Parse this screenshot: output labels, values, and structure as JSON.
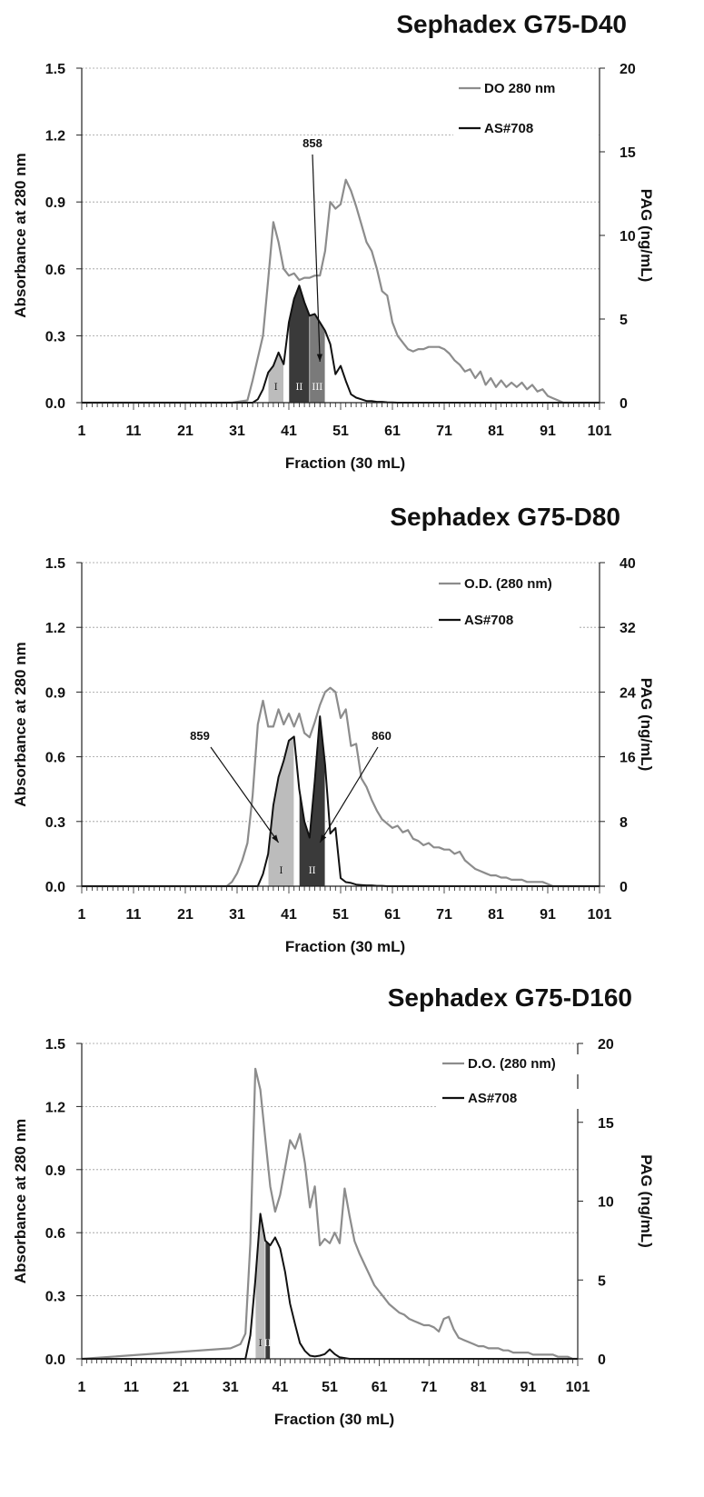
{
  "chart_data": [
    {
      "type": "line",
      "title": "Sephadex G75-D40",
      "xlabel": "Fraction (30 mL)",
      "ylabel": "Absorbance at 280 nm",
      "y2label": "PAG (ng/mL)",
      "xlim": [
        1,
        101
      ],
      "ylim": [
        0,
        1.5
      ],
      "y2lim": [
        0,
        20
      ],
      "xticks": [
        "1",
        "11",
        "21",
        "31",
        "41",
        "51",
        "61",
        "71",
        "81",
        "91",
        "101"
      ],
      "yticks": [
        "0.0",
        "0.3",
        "0.6",
        "0.9",
        "1.2",
        "1.5"
      ],
      "y2ticks": [
        "0",
        "5",
        "10",
        "15",
        "20"
      ],
      "grid": "horizontal",
      "legend_position": "top-right",
      "series": [
        {
          "name": "DO 280 nm",
          "axis": "left",
          "color": "#8c8c8c",
          "x": [
            1,
            30,
            33,
            34,
            35,
            36,
            37,
            38,
            39,
            40,
            41,
            42,
            43,
            44,
            45,
            46,
            47,
            48,
            49,
            50,
            51,
            52,
            53,
            54,
            55,
            56,
            57,
            58,
            59,
            60,
            61,
            62,
            63,
            64,
            65,
            66,
            67,
            68,
            69,
            70,
            71,
            72,
            73,
            74,
            75,
            76,
            77,
            78,
            79,
            80,
            81,
            82,
            83,
            84,
            85,
            86,
            87,
            88,
            89,
            90,
            91,
            92,
            93,
            94,
            95,
            101
          ],
          "y": [
            0,
            0,
            0.01,
            0.1,
            0.2,
            0.3,
            0.55,
            0.81,
            0.72,
            0.6,
            0.57,
            0.58,
            0.55,
            0.56,
            0.56,
            0.57,
            0.57,
            0.68,
            0.9,
            0.87,
            0.89,
            1.0,
            0.95,
            0.88,
            0.8,
            0.72,
            0.68,
            0.6,
            0.5,
            0.48,
            0.36,
            0.3,
            0.27,
            0.24,
            0.23,
            0.24,
            0.24,
            0.25,
            0.25,
            0.25,
            0.24,
            0.22,
            0.19,
            0.17,
            0.14,
            0.15,
            0.11,
            0.14,
            0.08,
            0.11,
            0.07,
            0.1,
            0.07,
            0.09,
            0.07,
            0.09,
            0.06,
            0.08,
            0.05,
            0.06,
            0.03,
            0.02,
            0.01,
            0.0,
            0,
            0
          ]
        },
        {
          "name": "AS#708",
          "axis": "right",
          "color": "#111111",
          "x": [
            1,
            34,
            35,
            36,
            37,
            38,
            39,
            40,
            41,
            42,
            43,
            44,
            45,
            46,
            47,
            48,
            49,
            50,
            51,
            52,
            53,
            54,
            55,
            56,
            57,
            58,
            59,
            60,
            61,
            62,
            101
          ],
          "y": [
            0,
            0,
            0.2,
            0.8,
            1.8,
            2.2,
            3.0,
            2.3,
            4.8,
            6.2,
            7.0,
            6.0,
            5.2,
            5.3,
            4.8,
            4.3,
            3.5,
            1.7,
            2.2,
            1.3,
            0.5,
            0.3,
            0.2,
            0.1,
            0.1,
            0.05,
            0.05,
            0.02,
            0.01,
            0,
            0
          ]
        }
      ],
      "fractions": [
        {
          "label": "I",
          "from": 37,
          "to": 40,
          "color": "#bcbcbc"
        },
        {
          "label": "II",
          "from": 41,
          "to": 45,
          "color": "#3a3a3a"
        },
        {
          "label": "III",
          "from": 45,
          "to": 48,
          "color": "#7a7a7a"
        }
      ],
      "annotations": [
        {
          "text": "858",
          "arrow_to_x": 47
        }
      ]
    },
    {
      "type": "line",
      "title": "Sephadex G75-D80",
      "xlabel": "Fraction (30 mL)",
      "ylabel": "Absorbance at 280 nm",
      "y2label": "PAG (ng/mL)",
      "xlim": [
        1,
        101
      ],
      "ylim": [
        0,
        1.5
      ],
      "y2lim": [
        0,
        40
      ],
      "xticks": [
        "1",
        "11",
        "21",
        "31",
        "41",
        "51",
        "61",
        "71",
        "81",
        "91",
        "101"
      ],
      "yticks": [
        "0.0",
        "0.3",
        "0.6",
        "0.9",
        "1.2",
        "1.5"
      ],
      "y2ticks": [
        "0",
        "8",
        "16",
        "24",
        "32",
        "40"
      ],
      "grid": "horizontal",
      "legend_position": "top-right",
      "series": [
        {
          "name": "O.D. (280 nm)",
          "axis": "left",
          "color": "#8c8c8c",
          "x": [
            1,
            29,
            30,
            31,
            32,
            33,
            34,
            35,
            36,
            37,
            38,
            39,
            40,
            41,
            42,
            43,
            44,
            45,
            46,
            47,
            48,
            49,
            50,
            51,
            52,
            53,
            54,
            55,
            56,
            57,
            58,
            59,
            60,
            61,
            62,
            63,
            64,
            65,
            66,
            67,
            68,
            69,
            70,
            71,
            72,
            73,
            74,
            75,
            76,
            77,
            78,
            79,
            80,
            81,
            82,
            83,
            84,
            85,
            86,
            87,
            88,
            89,
            90,
            91,
            92,
            101
          ],
          "y": [
            0,
            0,
            0.02,
            0.06,
            0.12,
            0.2,
            0.42,
            0.75,
            0.86,
            0.74,
            0.74,
            0.82,
            0.75,
            0.8,
            0.74,
            0.8,
            0.71,
            0.69,
            0.76,
            0.84,
            0.9,
            0.92,
            0.9,
            0.78,
            0.82,
            0.65,
            0.66,
            0.5,
            0.46,
            0.4,
            0.35,
            0.31,
            0.29,
            0.27,
            0.28,
            0.25,
            0.26,
            0.22,
            0.21,
            0.19,
            0.2,
            0.18,
            0.18,
            0.17,
            0.17,
            0.15,
            0.16,
            0.12,
            0.1,
            0.08,
            0.07,
            0.06,
            0.05,
            0.05,
            0.04,
            0.04,
            0.03,
            0.03,
            0.03,
            0.02,
            0.02,
            0.02,
            0.02,
            0.01,
            0,
            0
          ]
        },
        {
          "name": "AS#708",
          "axis": "right",
          "color": "#111111",
          "x": [
            1,
            35,
            36,
            37,
            38,
            39,
            40,
            41,
            42,
            43,
            44,
            45,
            46,
            47,
            48,
            49,
            50,
            51,
            52,
            53,
            54,
            55,
            56,
            57,
            58,
            59,
            60,
            101
          ],
          "y": [
            0,
            0,
            1.5,
            4,
            10,
            13.5,
            15.5,
            18,
            18.5,
            12,
            8,
            6,
            13,
            21,
            15,
            6.5,
            7.2,
            1,
            0.5,
            0.4,
            0.2,
            0.15,
            0.1,
            0.1,
            0.05,
            0.05,
            0,
            0
          ]
        }
      ],
      "fractions": [
        {
          "label": "I",
          "from": 37,
          "to": 42,
          "color": "#bcbcbc"
        },
        {
          "label": "II",
          "from": 43,
          "to": 48,
          "color": "#3a3a3a"
        }
      ],
      "annotations": [
        {
          "text": "859",
          "arrow_to_x": 39
        },
        {
          "text": "860",
          "arrow_to_x": 47
        }
      ]
    },
    {
      "type": "line",
      "title": "Sephadex G75-D160",
      "xlabel": "Fraction (30 mL)",
      "ylabel": "Absorbance at 280 nm",
      "y2label": "PAG (ng/mL)",
      "xlim": [
        1,
        101
      ],
      "ylim": [
        0,
        1.5
      ],
      "y2lim": [
        0,
        20
      ],
      "xticks": [
        "1",
        "11",
        "21",
        "31",
        "41",
        "51",
        "61",
        "71",
        "81",
        "91",
        "101"
      ],
      "yticks": [
        "0.0",
        "0.3",
        "0.6",
        "0.9",
        "1.2",
        "1.5"
      ],
      "y2ticks": [
        "0",
        "5",
        "10",
        "15",
        "20"
      ],
      "grid": "horizontal",
      "legend_position": "top-right",
      "series": [
        {
          "name": "D.O. (280 nm)",
          "axis": "left",
          "color": "#8c8c8c",
          "x": [
            1,
            31,
            32,
            33,
            34,
            35,
            36,
            37,
            38,
            39,
            40,
            41,
            42,
            43,
            44,
            45,
            46,
            47,
            48,
            49,
            50,
            51,
            52,
            53,
            54,
            55,
            56,
            57,
            58,
            59,
            60,
            61,
            62,
            63,
            64,
            65,
            66,
            67,
            68,
            69,
            70,
            71,
            72,
            73,
            74,
            75,
            76,
            77,
            78,
            79,
            80,
            81,
            82,
            83,
            84,
            85,
            86,
            87,
            88,
            89,
            90,
            91,
            92,
            93,
            94,
            95,
            96,
            97,
            98,
            99,
            100,
            101
          ],
          "y": [
            0,
            0.05,
            0.06,
            0.07,
            0.12,
            0.55,
            1.38,
            1.28,
            1.05,
            0.82,
            0.7,
            0.78,
            0.91,
            1.04,
            1.0,
            1.07,
            0.93,
            0.72,
            0.82,
            0.54,
            0.57,
            0.55,
            0.6,
            0.55,
            0.81,
            0.68,
            0.56,
            0.5,
            0.45,
            0.4,
            0.35,
            0.32,
            0.29,
            0.26,
            0.24,
            0.22,
            0.21,
            0.19,
            0.18,
            0.17,
            0.16,
            0.16,
            0.15,
            0.13,
            0.19,
            0.2,
            0.14,
            0.1,
            0.09,
            0.08,
            0.07,
            0.06,
            0.06,
            0.05,
            0.05,
            0.05,
            0.04,
            0.04,
            0.03,
            0.03,
            0.03,
            0.03,
            0.02,
            0.02,
            0.02,
            0.02,
            0.02,
            0.01,
            0.01,
            0.01,
            0.0,
            0
          ]
        },
        {
          "name": "AS#708",
          "axis": "right",
          "color": "#111111",
          "x": [
            1,
            34,
            35,
            36,
            37,
            38,
            39,
            40,
            41,
            42,
            43,
            44,
            45,
            46,
            47,
            48,
            49,
            50,
            51,
            52,
            53,
            54,
            55,
            101
          ],
          "y": [
            0,
            0,
            1.5,
            5,
            9.2,
            7.5,
            7.2,
            7.7,
            7,
            5.5,
            3.5,
            2.2,
            1,
            0.5,
            0.2,
            0.15,
            0.2,
            0.3,
            0.6,
            0.3,
            0.1,
            0.05,
            0,
            0
          ]
        }
      ],
      "fractions": [
        {
          "label": "I",
          "from": 36,
          "to": 38,
          "color": "#bcbcbc"
        },
        {
          "label": "II",
          "from": 38,
          "to": 39,
          "color": "#3a3a3a"
        }
      ],
      "annotations": []
    }
  ]
}
